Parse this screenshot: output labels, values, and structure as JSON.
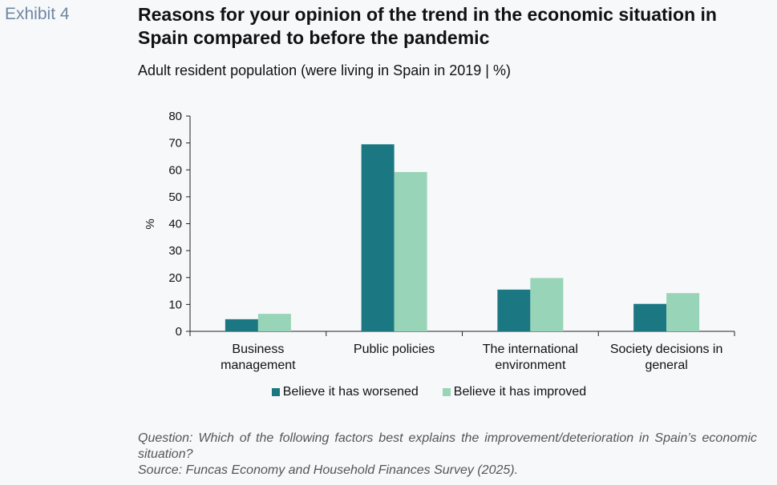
{
  "exhibit_label": "Exhibit 4",
  "title": "Reasons for your opinion of the trend in the economic situation in Spain compared to before the pandemic",
  "subtitle": "Adult resident population (were living in Spain in 2019 | %)",
  "footnote": {
    "question": "Question: Which of the following factors best explains the improvement/deterioration in Spain’s economic situation?",
    "source": "Source: Funcas Economy and Household Finances Survey (2025)."
  },
  "colors": {
    "worsened": "#1b7782",
    "improved": "#98d4b7",
    "axis": "#222222"
  },
  "chart_data": {
    "type": "bar",
    "title": "Reasons for your opinion of the trend in the economic situation in Spain compared to before the pandemic",
    "subtitle": "Adult resident population (were living in Spain in 2019 | %)",
    "categories": [
      [
        "Business",
        "management"
      ],
      [
        "Public policies"
      ],
      [
        "The international",
        "environment"
      ],
      [
        "Society decisions in",
        "general"
      ]
    ],
    "series": [
      {
        "name": "Believe it has worsened",
        "values": [
          4.5,
          69.5,
          15.5,
          10.2
        ]
      },
      {
        "name": "Believe it has improved",
        "values": [
          6.5,
          59.2,
          19.8,
          14.2
        ]
      }
    ],
    "xlabel": "",
    "ylabel": "%",
    "ylim": [
      0,
      80
    ],
    "yticks": [
      0,
      10,
      20,
      30,
      40,
      50,
      60,
      70,
      80
    ],
    "grid": false,
    "legend_position": "bottom"
  }
}
